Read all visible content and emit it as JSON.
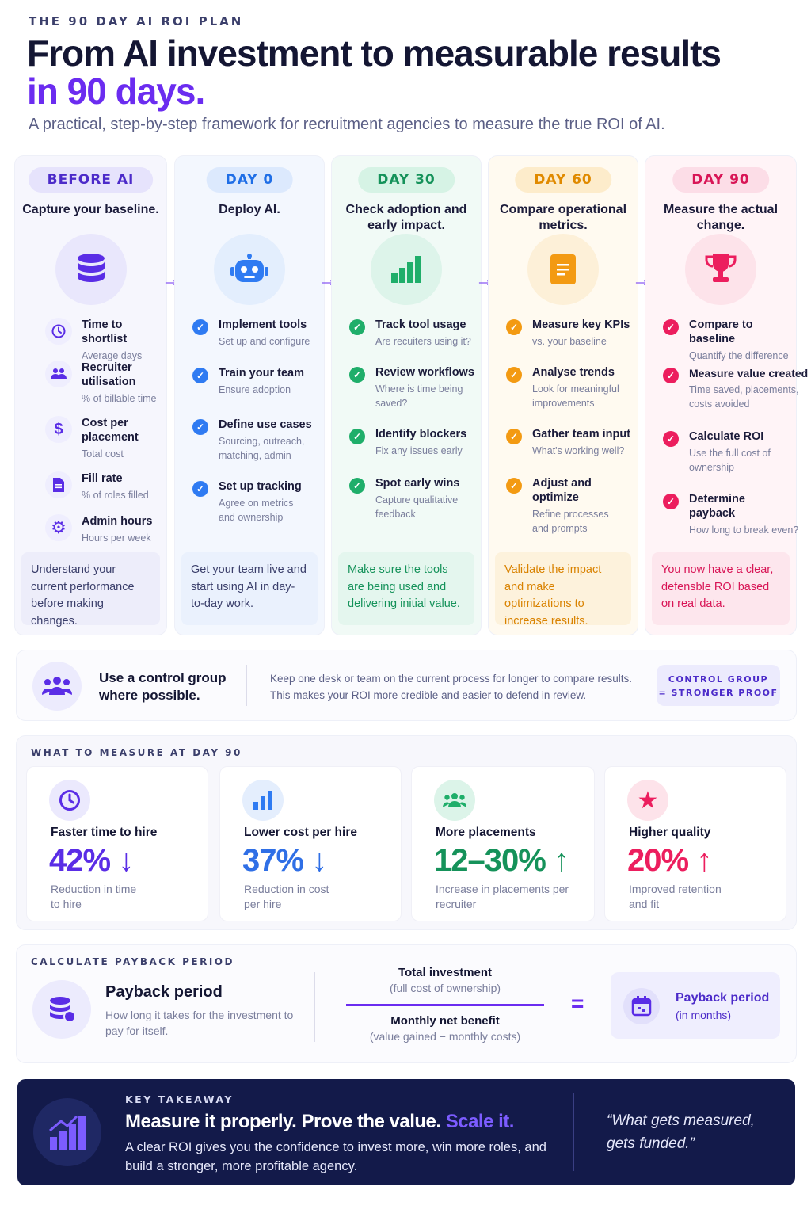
{
  "header": {
    "eyebrow": "THE 90 DAY AI ROI PLAN",
    "title_line1": "From AI investment to measurable results",
    "title_line2": "in 90 days.",
    "subtitle": "A practical, step-by-step framework for recruitment agencies to measure the true ROI of AI."
  },
  "colors": {
    "purple": "#6b2cf0",
    "blue": "#2f7bf2",
    "green": "#1fae6a",
    "orange": "#f39a12",
    "pink": "#ec1e5e",
    "navy": "#131a4a"
  },
  "columns": [
    {
      "pill": "BEFORE AI",
      "heading": "Capture your baseline.",
      "icon": "database-icon",
      "items": [
        {
          "title": "Time to shortlist",
          "sub": "Average days",
          "icon": "clock-icon"
        },
        {
          "title": "Recruiter utilisation",
          "sub": "% of billable time",
          "icon": "people-icon"
        },
        {
          "title": "Cost per placement",
          "sub": "Total cost",
          "icon": "dollar-icon"
        },
        {
          "title": "Fill rate",
          "sub": "% of roles filled",
          "icon": "document-icon"
        },
        {
          "title": "Admin hours",
          "sub": "Hours per week",
          "icon": "gear-icon"
        }
      ],
      "footer": "Understand your current performance before making changes."
    },
    {
      "pill": "DAY 0",
      "heading": "Deploy AI.",
      "icon": "robot-icon",
      "items": [
        {
          "title": "Implement tools",
          "sub": "Set up and configure"
        },
        {
          "title": "Train your team",
          "sub": "Ensure adoption"
        },
        {
          "title": "Define use cases",
          "sub": "Sourcing, outreach, matching, admin"
        },
        {
          "title": "Set up tracking",
          "sub": "Agree on metrics and ownership"
        }
      ],
      "footer": "Get your team live and start using AI in day-to-day work."
    },
    {
      "pill": "DAY 30",
      "heading": "Check adoption and early impact.",
      "icon": "bar-chart-icon",
      "items": [
        {
          "title": "Track tool usage",
          "sub": "Are recuiters using it?"
        },
        {
          "title": "Review workflows",
          "sub": "Where is time being saved?"
        },
        {
          "title": "Identify blockers",
          "sub": "Fix any issues early"
        },
        {
          "title": "Spot early wins",
          "sub": "Capture qualitative feedback"
        }
      ],
      "footer": "Make sure the tools are being used and delivering initial value."
    },
    {
      "pill": "DAY 60",
      "heading": "Compare operational metrics.",
      "icon": "clipboard-icon",
      "items": [
        {
          "title": "Measure key KPIs",
          "sub": "vs. your baseline"
        },
        {
          "title": "Analyse trends",
          "sub": "Look for meaningful improvements"
        },
        {
          "title": "Gather team input",
          "sub": "What's working well?"
        },
        {
          "title": "Adjust and optimize",
          "sub": "Refine processes and prompts"
        }
      ],
      "footer": "Validate the impact and make optimizations to increase results."
    },
    {
      "pill": "DAY 90",
      "heading": "Measure the actual change.",
      "icon": "trophy-icon",
      "items": [
        {
          "title": "Compare to baseline",
          "sub": "Quantify the difference"
        },
        {
          "title": "Measure value created",
          "sub": "Time saved, placements, costs avoided"
        },
        {
          "title": "Calculate ROI",
          "sub": "Use the full cost of ownership"
        },
        {
          "title": "Determine payback",
          "sub": "How long to break even?"
        }
      ],
      "footer": "You now have a clear, defensble ROI based on real data."
    }
  ],
  "control_group": {
    "title": "Use a control group where possible.",
    "description_line1": "Keep one desk or team on the current process for longer to compare results.",
    "description_line2": "This makes your ROI more credible and easier to defend in review.",
    "badge_line1": "CONTROL GROUP",
    "badge_line2": "= STRONGER PROOF"
  },
  "measure": {
    "label": "WHAT TO MEASURE AT DAY 90",
    "cards": [
      {
        "title": "Faster time to hire",
        "value": "42%",
        "arrow": "down",
        "sub": "Reduction in time to hire",
        "icon": "clock-icon"
      },
      {
        "title": "Lower cost per hire",
        "value": "37%",
        "arrow": "down",
        "sub": "Reduction in cost per hire",
        "icon": "bar-chart-icon"
      },
      {
        "title": "More placements",
        "value": "12–30%",
        "arrow": "up",
        "sub": "Increase in placements per recruiter",
        "icon": "people-icon"
      },
      {
        "title": "Higher quality",
        "value": "20%",
        "arrow": "up",
        "sub": "Improved retention and fit",
        "icon": "star-icon"
      }
    ]
  },
  "payback": {
    "label": "CALCULATE PAYBACK PERIOD",
    "title": "Payback period",
    "sub": "How long it takes for the investment to pay for itself.",
    "numerator": "Total investment",
    "numerator_sub": "(full cost of ownership)",
    "denominator": "Monthly net benefit",
    "denominator_sub": "(value gained − monthly costs)",
    "equals": "=",
    "result": "Payback period",
    "result_sub": "(in months)"
  },
  "takeaway": {
    "label": "KEY TAKEAWAY",
    "headline": "Measure it properly. Prove the value.",
    "headline_accent": "Scale it.",
    "body": "A clear ROI gives you the confidence to invest more, win more roles, and build a stronger, more profitable agency.",
    "quote": "“What gets measured, gets funded.”"
  }
}
